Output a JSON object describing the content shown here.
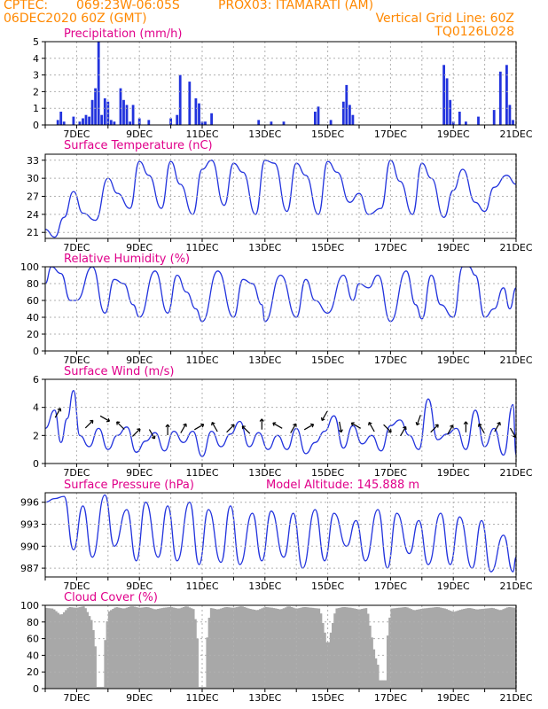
{
  "header": {
    "line1_left": "CPTEC:",
    "line1_coords": "069:23W-06:05S",
    "line1_station": "PROX03: ITAMARATI (AM)",
    "line2_left": "06DEC2020 60Z (GMT)",
    "line2_right": "Vertical Grid Line: 60Z",
    "line3_right": "TQ0126L028"
  },
  "colors": {
    "header": "#ff8800",
    "panel_title": "#e0008a",
    "series": "#2233dd",
    "cloud": "#a8a8a8",
    "grid": "#b0b0b0",
    "axis": "#000000"
  },
  "chart_data": [
    {
      "type": "bar",
      "title": "Precipitation (mm/h)",
      "ylim": [
        0,
        5
      ],
      "y_ticks": [
        "0",
        "1",
        "2",
        "3",
        "4",
        "5"
      ],
      "x_ticks": [
        "7DEC",
        "9DEC",
        "11DEC",
        "13DEC",
        "15DEC",
        "17DEC",
        "19DEC",
        "21DEC"
      ],
      "grid": true,
      "x": [
        6.4,
        6.5,
        6.6,
        6.9,
        7.1,
        7.2,
        7.3,
        7.4,
        7.5,
        7.6,
        7.7,
        7.8,
        7.9,
        8.0,
        8.1,
        8.2,
        8.4,
        8.5,
        8.6,
        8.7,
        8.8,
        9.0,
        9.3,
        10.0,
        10.2,
        10.3,
        10.6,
        10.8,
        10.9,
        11.0,
        11.1,
        11.3,
        12.8,
        13.2,
        13.6,
        14.6,
        14.7,
        15.1,
        15.5,
        15.6,
        15.7,
        15.8,
        18.7,
        18.8,
        18.9,
        19.0,
        19.2,
        19.4,
        19.8,
        20.3,
        20.5,
        20.7,
        20.8,
        20.9
      ],
      "values": [
        0.3,
        0.8,
        0.2,
        0.5,
        0.2,
        0.4,
        0.6,
        0.5,
        1.5,
        2.2,
        5.0,
        0.6,
        1.6,
        1.4,
        0.3,
        0.2,
        2.2,
        1.5,
        1.2,
        0.2,
        1.2,
        0.4,
        0.3,
        0.4,
        0.6,
        3.0,
        2.6,
        1.6,
        1.3,
        0.2,
        0.2,
        0.7,
        0.3,
        0.2,
        0.2,
        0.8,
        1.1,
        0.3,
        1.4,
        2.4,
        1.2,
        0.6,
        3.6,
        2.8,
        1.5,
        0.2,
        0.8,
        0.2,
        0.5,
        0.9,
        3.2,
        3.6,
        1.2,
        0.3
      ]
    },
    {
      "type": "line",
      "title": "Surface Temperature (nC)",
      "ylim": [
        20,
        34
      ],
      "y_ticks": [
        "21",
        "24",
        "27",
        "30",
        "33"
      ],
      "x_ticks": [
        "7DEC",
        "9DEC",
        "11DEC",
        "13DEC",
        "15DEC",
        "17DEC",
        "19DEC",
        "21DEC"
      ],
      "grid": true,
      "x": [
        6.0,
        6.3,
        6.6,
        6.9,
        7.2,
        7.6,
        8.0,
        8.3,
        8.7,
        9.0,
        9.3,
        9.7,
        10.0,
        10.3,
        10.7,
        11.0,
        11.3,
        11.7,
        12.0,
        12.3,
        12.7,
        13.0,
        13.3,
        13.7,
        14.0,
        14.3,
        14.7,
        15.0,
        15.3,
        15.7,
        16.0,
        16.3,
        16.7,
        17.0,
        17.3,
        17.7,
        18.0,
        18.3,
        18.7,
        19.0,
        19.3,
        19.7,
        20.0,
        20.3,
        20.7,
        21.0
      ],
      "values": [
        21.5,
        20.2,
        23.5,
        27.8,
        24.2,
        23.0,
        30.0,
        27.5,
        25.0,
        32.8,
        30.5,
        25.0,
        32.8,
        29.0,
        24.0,
        31.5,
        33.0,
        25.5,
        32.5,
        31.0,
        24.0,
        33.0,
        32.5,
        24.5,
        32.5,
        30.5,
        24.0,
        32.8,
        31.0,
        26.0,
        27.5,
        24.0,
        25.0,
        33.0,
        29.5,
        24.0,
        32.5,
        30.0,
        23.5,
        28.0,
        31.5,
        26.0,
        24.5,
        28.5,
        30.5,
        29.0
      ]
    },
    {
      "type": "line",
      "title": "Relative Humidity (%)",
      "ylim": [
        0,
        100
      ],
      "y_ticks": [
        "0",
        "20",
        "40",
        "60",
        "80",
        "100"
      ],
      "x_ticks": [
        "7DEC",
        "9DEC",
        "11DEC",
        "13DEC",
        "15DEC",
        "17DEC",
        "19DEC",
        "21DEC"
      ],
      "grid": true,
      "x": [
        6.0,
        6.2,
        6.5,
        6.8,
        7.0,
        7.5,
        7.9,
        8.2,
        8.5,
        8.8,
        9.0,
        9.5,
        9.9,
        10.2,
        10.5,
        10.8,
        11.0,
        11.5,
        12.0,
        12.3,
        12.6,
        12.9,
        13.0,
        13.5,
        14.0,
        14.3,
        14.6,
        15.0,
        15.5,
        15.8,
        16.0,
        16.3,
        16.6,
        17.0,
        17.5,
        17.8,
        18.0,
        18.3,
        18.6,
        19.0,
        19.3,
        19.5,
        19.7,
        20.0,
        20.3,
        20.6,
        20.8,
        21.0
      ],
      "values": [
        80,
        100,
        92,
        60,
        60,
        100,
        45,
        85,
        80,
        55,
        40,
        95,
        45,
        90,
        70,
        50,
        35,
        95,
        40,
        85,
        80,
        55,
        35,
        90,
        40,
        85,
        60,
        45,
        90,
        60,
        80,
        75,
        90,
        35,
        95,
        55,
        38,
        90,
        55,
        40,
        100,
        100,
        90,
        40,
        50,
        75,
        50,
        75
      ]
    },
    {
      "type": "line",
      "title": "Surface Wind (m/s)",
      "ylim": [
        0,
        6
      ],
      "y_ticks": [
        "0",
        "2",
        "4",
        "6"
      ],
      "x_ticks": [
        "7DEC",
        "9DEC",
        "11DEC",
        "13DEC",
        "15DEC",
        "17DEC",
        "19DEC",
        "21DEC"
      ],
      "grid": true,
      "x": [
        6.0,
        6.3,
        6.5,
        6.7,
        6.9,
        7.1,
        7.4,
        7.7,
        8.0,
        8.3,
        8.6,
        8.9,
        9.2,
        9.5,
        9.8,
        10.1,
        10.4,
        10.7,
        11.0,
        11.3,
        11.6,
        11.9,
        12.2,
        12.5,
        12.8,
        13.1,
        13.4,
        13.7,
        14.0,
        14.3,
        14.6,
        14.9,
        15.2,
        15.5,
        15.8,
        16.1,
        16.4,
        16.7,
        17.0,
        17.3,
        17.6,
        17.9,
        18.2,
        18.5,
        18.8,
        19.1,
        19.4,
        19.7,
        20.0,
        20.3,
        20.6,
        20.9,
        21.0
      ],
      "values": [
        2.5,
        3.8,
        1.5,
        3.2,
        5.2,
        2.0,
        1.2,
        2.5,
        1.0,
        2.0,
        2.6,
        0.8,
        1.6,
        2.2,
        0.9,
        2.3,
        1.5,
        2.3,
        0.5,
        2.3,
        1.2,
        2.1,
        3.0,
        1.2,
        2.2,
        1.0,
        2.0,
        1.0,
        2.5,
        0.7,
        1.5,
        2.3,
        3.4,
        1.1,
        2.7,
        1.4,
        2.0,
        0.9,
        2.7,
        3.1,
        2.0,
        1.0,
        4.6,
        1.7,
        2.1,
        2.5,
        1.0,
        3.8,
        1.2,
        2.5,
        0.6,
        4.2,
        0.6
      ]
    },
    {
      "type": "line",
      "title": "Surface Pressure (hPa)",
      "annotation": "Model Altitude: 145.888 m",
      "ylim": [
        985.8,
        997.3
      ],
      "y_ticks": [
        "987",
        "990",
        "993",
        "996"
      ],
      "x_ticks": [
        "7DEC",
        "9DEC",
        "11DEC",
        "13DEC",
        "15DEC",
        "17DEC",
        "19DEC",
        "21DEC"
      ],
      "grid": true,
      "x": [
        6.0,
        6.3,
        6.6,
        6.9,
        7.2,
        7.5,
        7.9,
        8.2,
        8.6,
        8.9,
        9.2,
        9.6,
        9.9,
        10.2,
        10.6,
        10.9,
        11.2,
        11.6,
        11.9,
        12.2,
        12.6,
        12.9,
        13.2,
        13.6,
        13.9,
        14.2,
        14.6,
        14.9,
        15.2,
        15.6,
        15.9,
        16.2,
        16.6,
        16.9,
        17.2,
        17.6,
        17.9,
        18.2,
        18.6,
        18.9,
        19.2,
        19.6,
        19.9,
        20.2,
        20.6,
        20.9,
        21.0
      ],
      "values": [
        996.0,
        996.5,
        996.8,
        989.5,
        995.5,
        988.5,
        997.0,
        990.0,
        995.0,
        988.0,
        996.0,
        988.5,
        995.5,
        988.0,
        996.0,
        987.5,
        995.0,
        987.8,
        995.5,
        987.5,
        994.5,
        988.0,
        994.8,
        988.5,
        994.5,
        987.0,
        995.0,
        988.0,
        994.5,
        990.0,
        993.5,
        988.0,
        995.0,
        987.0,
        994.5,
        989.0,
        993.5,
        987.5,
        994.5,
        987.5,
        994.0,
        987.0,
        993.5,
        986.5,
        991.5,
        986.5,
        988.5
      ]
    },
    {
      "type": "area",
      "title": "Cloud Cover (%)",
      "ylim": [
        0,
        100
      ],
      "y_ticks": [
        "0",
        "20",
        "40",
        "60",
        "80",
        "100"
      ],
      "x_ticks": [
        "7DEC",
        "9DEC",
        "11DEC",
        "13DEC",
        "15DEC",
        "17DEC",
        "19DEC",
        "21DEC"
      ],
      "grid": true,
      "x": [
        6.0,
        6.25,
        6.5,
        6.75,
        7.0,
        7.25,
        7.5,
        7.75,
        8.0,
        8.25,
        8.5,
        8.75,
        9.0,
        9.25,
        9.5,
        9.75,
        10.0,
        10.25,
        10.5,
        10.75,
        11.0,
        11.25,
        11.5,
        11.75,
        12.0,
        12.25,
        12.5,
        12.75,
        13.0,
        13.25,
        13.5,
        13.75,
        14.0,
        14.25,
        14.5,
        14.75,
        15.0,
        15.25,
        15.5,
        15.75,
        16.0,
        16.25,
        16.5,
        16.75,
        17.0,
        17.25,
        17.5,
        17.75,
        18.0,
        18.25,
        18.5,
        18.75,
        19.0,
        19.25,
        19.5,
        19.75,
        20.0,
        20.25,
        20.5,
        20.75,
        21.0
      ],
      "values": [
        97,
        96,
        88,
        98,
        97,
        99,
        80,
        2,
        92,
        98,
        96,
        99,
        97,
        98,
        95,
        97,
        98,
        96,
        99,
        95,
        2,
        97,
        95,
        98,
        97,
        99,
        96,
        94,
        98,
        97,
        95,
        99,
        96,
        98,
        97,
        96,
        50,
        96,
        98,
        97,
        95,
        97,
        40,
        10,
        96,
        97,
        98,
        94,
        96,
        97,
        98,
        96,
        92,
        95,
        97,
        95,
        96,
        97,
        94,
        98,
        97
      ]
    },
    {
      "type": "scatter",
      "title": "Surface Wind (m/s) wind direction arrows",
      "x": [
        6.4,
        7.4,
        7.9,
        8.4,
        8.9,
        9.4,
        9.9,
        10.4,
        10.9,
        11.4,
        11.9,
        12.4,
        12.9,
        13.4,
        13.9,
        14.4,
        14.9,
        15.4,
        15.9,
        16.4,
        16.9,
        17.4,
        17.9,
        18.4,
        18.9,
        19.4,
        19.9,
        20.4,
        20.9
      ],
      "values": [
        3.6,
        2.8,
        3.2,
        2.7,
        2.2,
        2.1,
        2.4,
        2.5,
        2.6,
        2.6,
        2.5,
        2.4,
        2.8,
        2.7,
        2.5,
        2.6,
        3.4,
        2.6,
        2.7,
        2.6,
        2.5,
        2.3,
        3.1,
        2.5,
        2.4,
        2.6,
        2.5,
        2.6,
        2.2
      ],
      "angles": [
        60,
        45,
        -30,
        135,
        45,
        -60,
        90,
        60,
        30,
        120,
        45,
        135,
        90,
        150,
        60,
        30,
        -120,
        -80,
        150,
        120,
        -45,
        60,
        -110,
        45,
        60,
        90,
        120,
        60,
        -60
      ]
    }
  ]
}
